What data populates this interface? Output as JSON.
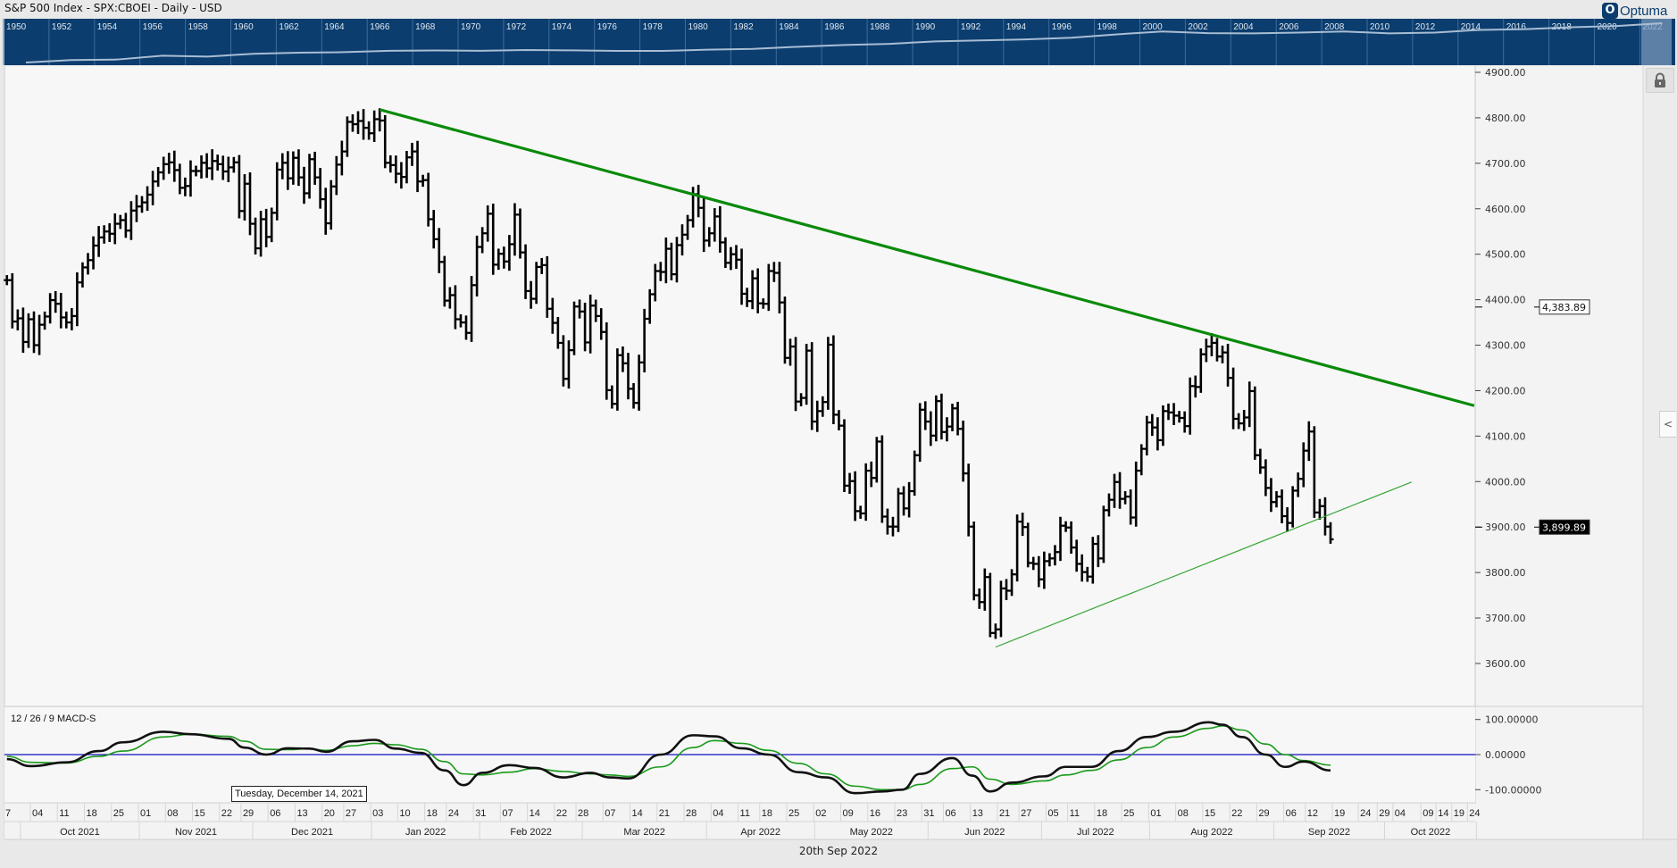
{
  "header": {
    "title": "S&P 500 Index - SPX:CBOEI - Daily - USD",
    "logo_text": "Optuma"
  },
  "overview": {
    "years": [
      "1950",
      "1952",
      "1954",
      "1956",
      "1958",
      "1960",
      "1962",
      "1964",
      "1966",
      "1968",
      "1970",
      "1972",
      "1974",
      "1976",
      "1978",
      "1980",
      "1982",
      "1984",
      "1986",
      "1988",
      "1990",
      "1992",
      "1994",
      "1996",
      "1998",
      "2000",
      "2002",
      "2004",
      "2006",
      "2008",
      "2010",
      "2012",
      "2014",
      "2016",
      "2018",
      "2020",
      "2022"
    ],
    "values": [
      17,
      24,
      26,
      45,
      40,
      59,
      70,
      75,
      92,
      96,
      92,
      102,
      97,
      90,
      90,
      107,
      120,
      164,
      211,
      247,
      353,
      408,
      466,
      600,
      970,
      1469,
      1148,
      1111,
      1248,
      1468,
      1115,
      1257,
      1848,
      2044,
      2695,
      3231,
      4766
    ]
  },
  "chart_data": {
    "type": "ohlc",
    "title": "S&P 500 Index - SPX:CBOEI - Daily - USD",
    "first_bar_date": "2021-09-27",
    "closes": [
      4443,
      4352,
      4359,
      4307,
      4357,
      4300,
      4345,
      4363,
      4399,
      4391,
      4361,
      4350,
      4364,
      4438,
      4471,
      4487,
      4519,
      4537,
      4550,
      4545,
      4567,
      4575,
      4552,
      4596,
      4605,
      4614,
      4631,
      4660,
      4680,
      4698,
      4702,
      4685,
      4646,
      4650,
      4683,
      4683,
      4701,
      4689,
      4705,
      4698,
      4682,
      4691,
      4702,
      4595,
      4655,
      4567,
      4513,
      4577,
      4538,
      4591,
      4686,
      4701,
      4667,
      4712,
      4669,
      4634,
      4709,
      4669,
      4621,
      4568,
      4649,
      4697,
      4726,
      4791,
      4786,
      4793,
      4778,
      4766,
      4797,
      4794,
      4701,
      4696,
      4677,
      4670,
      4713,
      4726,
      4660,
      4663,
      4577,
      4533,
      4483,
      4398,
      4410,
      4357,
      4350,
      4327,
      4432,
      4516,
      4546,
      4589,
      4477,
      4501,
      4484,
      4522,
      4587,
      4504,
      4419,
      4402,
      4472,
      4476,
      4380,
      4349,
      4305,
      4226,
      4289,
      4385,
      4374,
      4306,
      4387,
      4364,
      4329,
      4201,
      4171,
      4278,
      4260,
      4204,
      4173,
      4262,
      4358,
      4412,
      4463,
      4461,
      4512,
      4456,
      4520,
      4543,
      4575,
      4632,
      4602,
      4530,
      4546,
      4583,
      4526,
      4481,
      4500,
      4488,
      4413,
      4397,
      4447,
      4392,
      4391,
      4463,
      4459,
      4394,
      4272,
      4297,
      4176,
      4184,
      4288,
      4132,
      4155,
      4175,
      4301,
      4147,
      4123,
      3991,
      4001,
      3935,
      3930,
      4024,
      4008,
      4088,
      3923,
      3901,
      3901,
      3974,
      3941,
      3979,
      4058,
      4158,
      4132,
      4101,
      4177,
      4109,
      4121,
      4161,
      4116,
      4018,
      3901,
      3750,
      3735,
      3790,
      3667,
      3675,
      3765,
      3760,
      3796,
      3912,
      3900,
      3821,
      3819,
      3785,
      3825,
      3831,
      3845,
      3903,
      3899,
      3855,
      3819,
      3801,
      3791,
      3863,
      3831,
      3937,
      3960,
      3999,
      3962,
      3967,
      3921,
      4024,
      4072,
      4130,
      4119,
      4091,
      4155,
      4152,
      4145,
      4140,
      4122,
      4210,
      4208,
      4280,
      4297,
      4305,
      4275,
      4284,
      4228,
      4138,
      4128,
      4141,
      4199,
      4058,
      4031,
      3986,
      3955,
      3967,
      3924,
      3909,
      3980,
      4006,
      4068,
      4110,
      3932,
      3946,
      3901,
      3873
    ],
    "price_axis": {
      "min": 3600,
      "max": 4900,
      "ticks": [
        "4900.00",
        "4800.00",
        "4700.00",
        "4600.00",
        "4500.00",
        "4400.00",
        "4300.00",
        "4200.00",
        "4100.00",
        "4000.00",
        "3900.00",
        "3800.00",
        "3700.00",
        "3600.00"
      ]
    },
    "flags": [
      {
        "label": "4,383.89",
        "value": 4383.89,
        "style": "outline"
      },
      {
        "label": "3,899.89",
        "value": 3899.89,
        "style": "filled"
      }
    ],
    "trendlines": [
      {
        "name": "resistance",
        "color": "#0a8a0a",
        "from": {
          "bar": 69,
          "price": 4818
        },
        "to": {
          "bar": 271.6,
          "price": 4167
        }
      },
      {
        "name": "support",
        "color": "#3aa63a",
        "from": {
          "bar": 183,
          "price": 3636
        },
        "to": {
          "bar": 260,
          "price": 3999
        }
      }
    ],
    "macd": {
      "label": "12 / 26 / 9 MACD-S",
      "axis_ticks": [
        "100.00000",
        "0.00000",
        "-100.00000"
      ],
      "colors": {
        "macd": "#111111",
        "signal": "#1a9a1a",
        "zero": "#1010c0"
      },
      "points": [
        [
          0,
          -13,
          -5
        ],
        [
          4.4,
          -33,
          -22
        ],
        [
          11,
          -22,
          -24
        ],
        [
          17,
          10,
          -5
        ],
        [
          21.5,
          35,
          10
        ],
        [
          29,
          65,
          50
        ],
        [
          34,
          58,
          58
        ],
        [
          41,
          45,
          52
        ],
        [
          44,
          20,
          38
        ],
        [
          48,
          0,
          15
        ],
        [
          52,
          18,
          14
        ],
        [
          56,
          17,
          17
        ],
        [
          59,
          8,
          12
        ],
        [
          64,
          38,
          25
        ],
        [
          68,
          42,
          32
        ],
        [
          72,
          17,
          28
        ],
        [
          76.6,
          5,
          15
        ],
        [
          81,
          -45,
          -20
        ],
        [
          84.5,
          -87,
          -55
        ],
        [
          88,
          -52,
          -58
        ],
        [
          93,
          -30,
          -50
        ],
        [
          97.6,
          -38,
          -40
        ],
        [
          103,
          -65,
          -48
        ],
        [
          108,
          -52,
          -55
        ],
        [
          111.6,
          -65,
          -58
        ],
        [
          115,
          -68,
          -62
        ],
        [
          121,
          0,
          -35
        ],
        [
          127,
          55,
          20
        ],
        [
          131,
          52,
          40
        ],
        [
          136,
          18,
          32
        ],
        [
          141,
          0,
          12
        ],
        [
          146.5,
          -50,
          -25
        ],
        [
          151.6,
          -65,
          -55
        ],
        [
          157,
          -110,
          -90
        ],
        [
          162,
          -105,
          -100
        ],
        [
          165.7,
          -100,
          -100
        ],
        [
          169,
          -55,
          -85
        ],
        [
          175,
          -10,
          -40
        ],
        [
          178.7,
          -60,
          -35
        ],
        [
          182,
          -105,
          -70
        ],
        [
          186,
          -80,
          -85
        ],
        [
          192,
          -62,
          -75
        ],
        [
          196,
          -35,
          -58
        ],
        [
          200.7,
          -35,
          -45
        ],
        [
          205.8,
          10,
          -15
        ],
        [
          211,
          50,
          20
        ],
        [
          216,
          65,
          50
        ],
        [
          222.5,
          92,
          75
        ],
        [
          225,
          85,
          82
        ],
        [
          228.6,
          50,
          70
        ],
        [
          233,
          0,
          30
        ],
        [
          236.6,
          -35,
          0
        ],
        [
          240,
          -20,
          -17
        ],
        [
          245,
          -45,
          -30
        ]
      ]
    },
    "week_ticks": [
      [
        "7",
        0
      ],
      [
        "04",
        5
      ],
      [
        "11",
        10
      ],
      [
        "18",
        15
      ],
      [
        "25",
        20
      ],
      [
        "01",
        25
      ],
      [
        "08",
        30
      ],
      [
        "15",
        35
      ],
      [
        "22",
        40
      ],
      [
        "29",
        44
      ],
      [
        "06",
        49
      ],
      [
        "13",
        54
      ],
      [
        "20",
        59
      ],
      [
        "27",
        63
      ],
      [
        "03",
        68
      ],
      [
        "10",
        73
      ],
      [
        "18",
        78
      ],
      [
        "24",
        82
      ],
      [
        "31",
        87
      ],
      [
        "07",
        92
      ],
      [
        "14",
        97
      ],
      [
        "22",
        102
      ],
      [
        "28",
        106
      ],
      [
        "07",
        111
      ],
      [
        "14",
        116
      ],
      [
        "21",
        121
      ],
      [
        "28",
        126
      ],
      [
        "04",
        131
      ],
      [
        "11",
        136
      ],
      [
        "18",
        140
      ],
      [
        "25",
        145
      ],
      [
        "02",
        150
      ],
      [
        "09",
        155
      ],
      [
        "16",
        160
      ],
      [
        "23",
        165
      ],
      [
        "31",
        170
      ],
      [
        "06",
        174
      ],
      [
        "13",
        179
      ],
      [
        "21",
        184
      ],
      [
        "27",
        188
      ],
      [
        "05",
        193
      ],
      [
        "11",
        197
      ],
      [
        "18",
        202
      ],
      [
        "25",
        207
      ],
      [
        "01",
        212
      ],
      [
        "08",
        217
      ],
      [
        "15",
        222
      ],
      [
        "22",
        227
      ],
      [
        "29",
        232
      ],
      [
        "06",
        237
      ],
      [
        "12",
        241
      ],
      [
        "19",
        246
      ],
      [
        "24",
        250.8
      ],
      [
        "29",
        254.3
      ],
      [
        "04",
        257.2
      ],
      [
        "09",
        262.4
      ],
      [
        "14",
        265.2
      ],
      [
        "19",
        268.1
      ],
      [
        "24",
        271
      ]
    ],
    "months": [
      [
        "Oct 2021",
        2.5
      ],
      [
        "Nov 2021",
        24.5
      ],
      [
        "Dec 2021",
        45.5
      ],
      [
        "Jan 2022",
        67.5
      ],
      [
        "Feb 2022",
        87.5
      ],
      [
        "Mar 2022",
        106.5
      ],
      [
        "Apr 2022",
        129.5
      ],
      [
        "May 2022",
        149.5
      ],
      [
        "Jun 2022",
        170.5
      ],
      [
        "Jul 2022",
        191.5
      ],
      [
        "Aug 2022",
        211.5
      ],
      [
        "Sep 2022",
        234.5
      ],
      [
        "Oct 2022",
        255
      ],
      [
        "",
        272
      ]
    ]
  },
  "tooltip": "Tuesday, December 14, 2021",
  "footer": "20th Sep 2022",
  "controls": {
    "collapse_glyph": "<"
  }
}
